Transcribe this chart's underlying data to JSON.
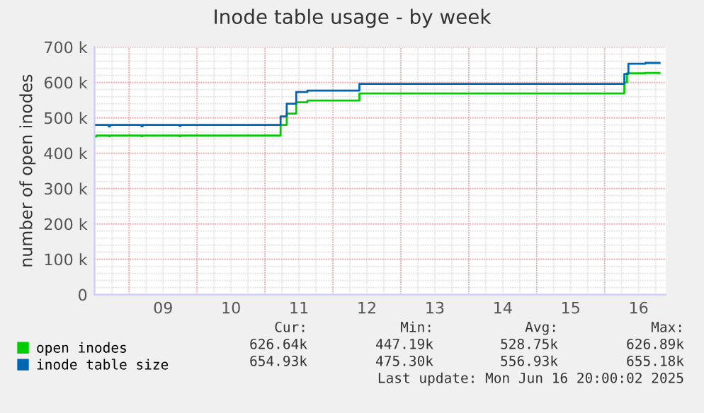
{
  "chart_data": {
    "type": "step",
    "title": "Inode table usage - by week",
    "ylabel": "number of open inodes",
    "xlim": [
      8.49,
      16.9
    ],
    "ylim": [
      0,
      700000
    ],
    "xticks": [
      {
        "value": 9.5,
        "label": "09"
      },
      {
        "value": 10.5,
        "label": "10"
      },
      {
        "value": 11.5,
        "label": "11"
      },
      {
        "value": 12.5,
        "label": "12"
      },
      {
        "value": 13.5,
        "label": "13"
      },
      {
        "value": 14.5,
        "label": "14"
      },
      {
        "value": 15.5,
        "label": "15"
      },
      {
        "value": 16.5,
        "label": "16"
      }
    ],
    "yticks": [
      {
        "value": 0,
        "label": "0"
      },
      {
        "value": 100000,
        "label": "100 k"
      },
      {
        "value": 200000,
        "label": "200 k"
      },
      {
        "value": 300000,
        "label": "300 k"
      },
      {
        "value": 400000,
        "label": "400 k"
      },
      {
        "value": 500000,
        "label": "500 k"
      },
      {
        "value": 600000,
        "label": "600 k"
      },
      {
        "value": 700000,
        "label": "700 k"
      }
    ],
    "grid": true,
    "legend": "bottom",
    "marker": "none",
    "line_style": "solid",
    "series": [
      {
        "name": "open inodes",
        "color": "#00cc00",
        "x": [
          8.49,
          8.52,
          8.7,
          8.72,
          9.18,
          9.2,
          9.74,
          9.76,
          11.23,
          11.32,
          11.46,
          11.625,
          12.39,
          16.29,
          16.33,
          16.6,
          16.81
        ],
        "values": [
          447190,
          450000,
          448000,
          450000,
          448000,
          450000,
          448000,
          450000,
          480000,
          512000,
          544000,
          549000,
          569000,
          600000,
          626000,
          626890,
          626640
        ]
      },
      {
        "name": "inode table size",
        "color": "#0066b3",
        "x": [
          8.49,
          8.7,
          8.72,
          9.18,
          9.2,
          9.74,
          9.76,
          11.23,
          11.32,
          11.46,
          11.625,
          12.39,
          16.29,
          16.35,
          16.6,
          16.81
        ],
        "values": [
          480000,
          475300,
          480000,
          476000,
          480000,
          477000,
          480000,
          504000,
          540000,
          573000,
          577000,
          596000,
          624000,
          653000,
          655180,
          654930
        ]
      }
    ],
    "annotations": [
      "Cur:",
      "Min:",
      "Avg:",
      "Max:",
      "626.64k",
      "447.19k",
      "528.75k",
      "626.89k",
      "654.93k",
      "475.30k",
      "556.93k",
      "655.18k",
      "Last update: Mon Jun 16 20:00:02 2025"
    ]
  }
}
